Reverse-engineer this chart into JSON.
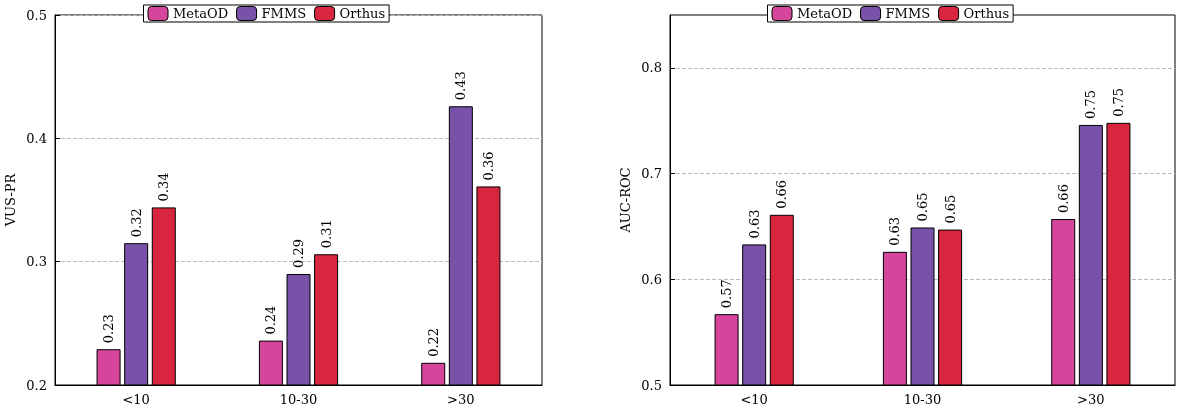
{
  "chart_data": [
    {
      "type": "bar",
      "ylabel": "VUS-PR",
      "categories": [
        "<10",
        "10-30",
        ">30"
      ],
      "ylim": [
        0.2,
        0.5
      ],
      "yticks": [
        0.2,
        0.3,
        0.4,
        0.5
      ],
      "grid": "y",
      "legend": "top",
      "series": [
        {
          "name": "MetaOD",
          "color": "#d6449c",
          "values": [
            0.229,
            0.236,
            0.218
          ],
          "value_labels": [
            "0.23",
            "0.24",
            "0.22"
          ]
        },
        {
          "name": "FMMS",
          "color": "#7851a9",
          "values": [
            0.315,
            0.29,
            0.426
          ],
          "value_labels": [
            "0.32",
            "0.29",
            "0.43"
          ]
        },
        {
          "name": "Orthus",
          "color": "#d7263d",
          "values": [
            0.344,
            0.306,
            0.361
          ],
          "value_labels": [
            "0.34",
            "0.31",
            "0.36"
          ]
        }
      ]
    },
    {
      "type": "bar",
      "ylabel": "AUC-ROC",
      "categories": [
        "<10",
        "10-30",
        ">30"
      ],
      "ylim": [
        0.5,
        0.85
      ],
      "yticks": [
        0.5,
        0.6,
        0.7,
        0.8
      ],
      "grid": "y",
      "legend": "top",
      "series": [
        {
          "name": "MetaOD",
          "color": "#d6449c",
          "values": [
            0.567,
            0.626,
            0.657
          ],
          "value_labels": [
            "0.57",
            "0.63",
            "0.66"
          ]
        },
        {
          "name": "FMMS",
          "color": "#7851a9",
          "values": [
            0.633,
            0.649,
            0.746
          ],
          "value_labels": [
            "0.63",
            "0.65",
            "0.75"
          ]
        },
        {
          "name": "Orthus",
          "color": "#d7263d",
          "values": [
            0.661,
            0.647,
            0.748
          ],
          "value_labels": [
            "0.66",
            "0.65",
            "0.75"
          ]
        }
      ]
    }
  ]
}
